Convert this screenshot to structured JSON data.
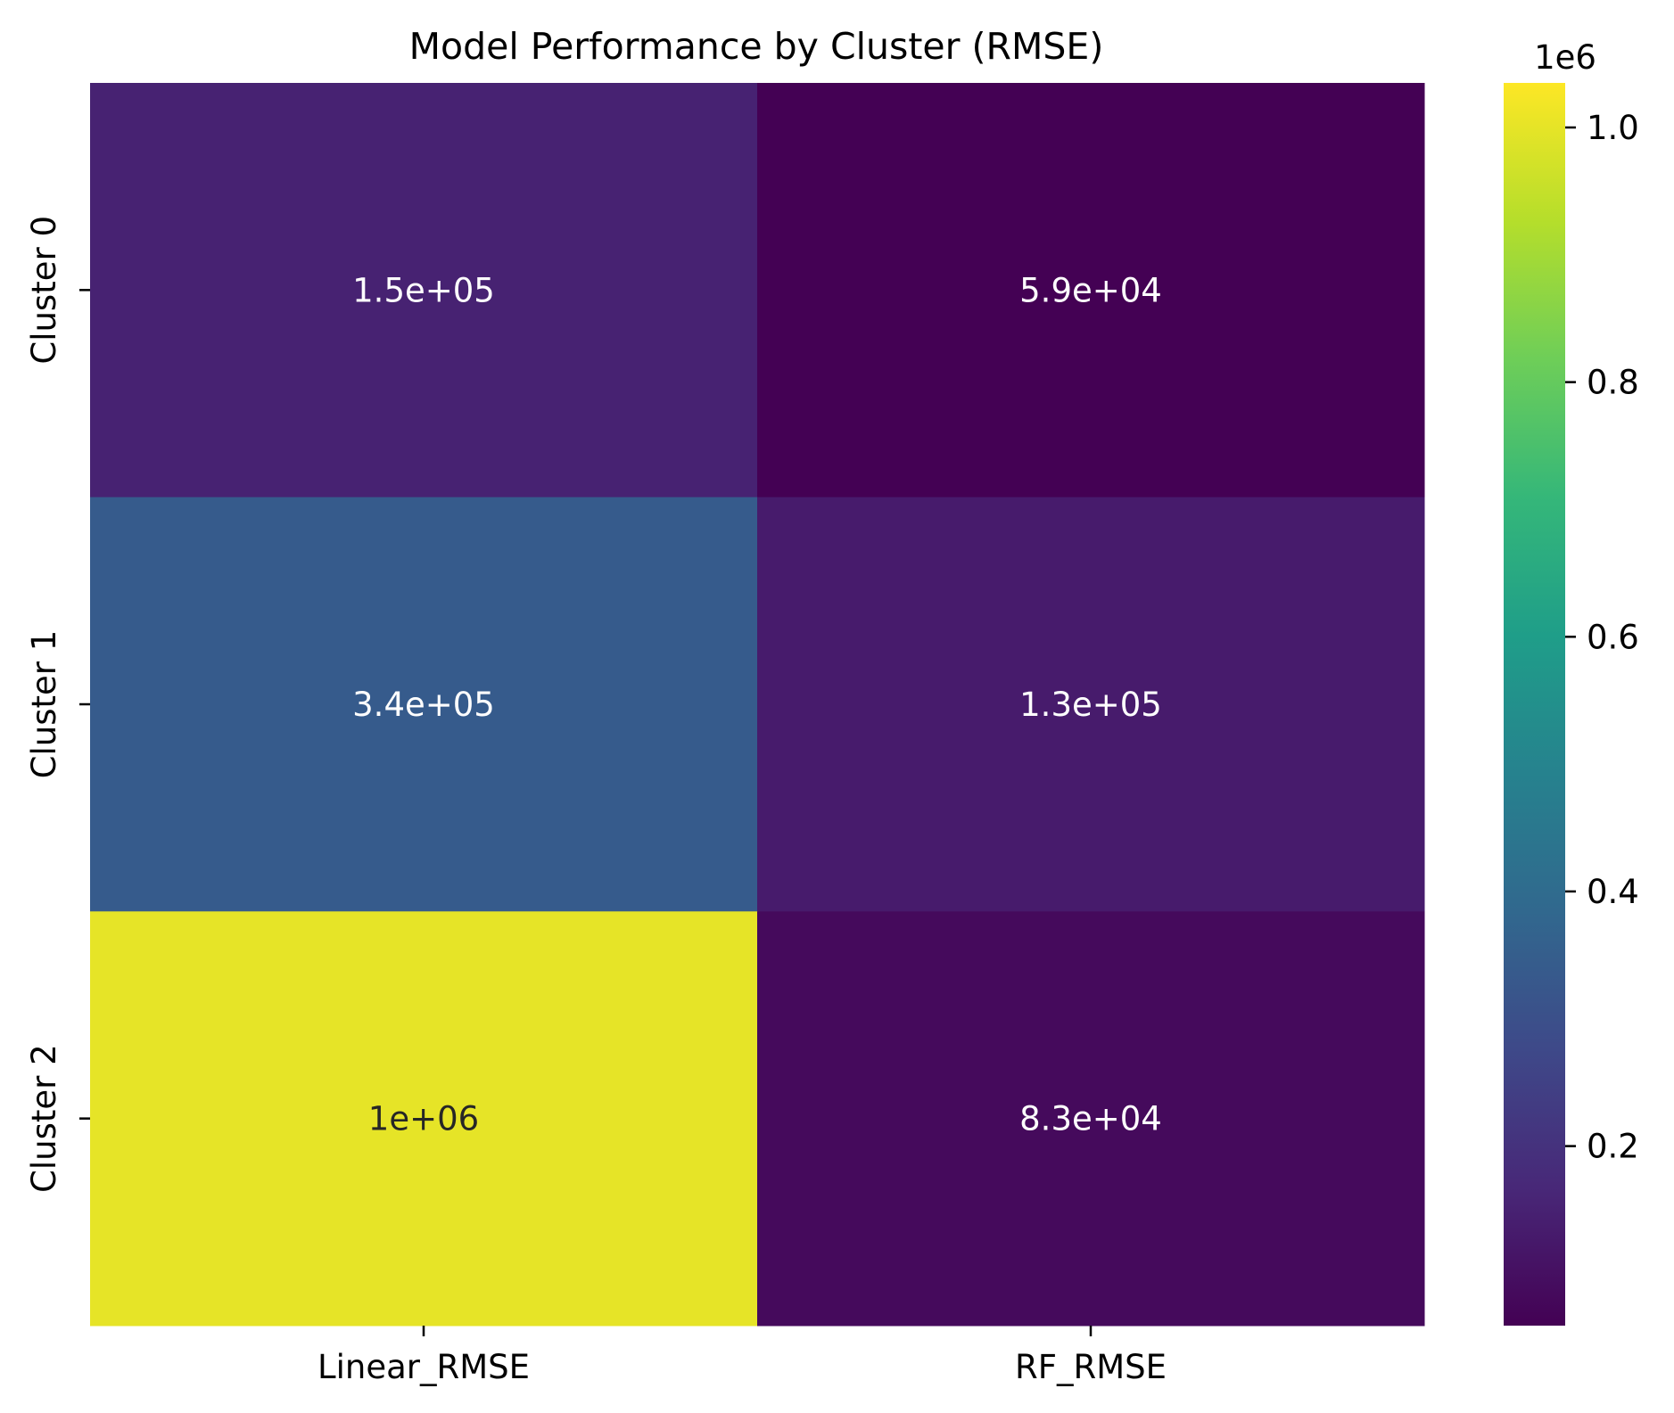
{
  "chart_data": {
    "type": "heatmap",
    "title": "Model Performance by Cluster (RMSE)",
    "xlabel": "",
    "ylabel": "",
    "x_categories": [
      "Linear_RMSE",
      "RF_RMSE"
    ],
    "y_categories": [
      "Cluster 0",
      "Cluster 1",
      "Cluster 2"
    ],
    "values": [
      [
        150000,
        59000
      ],
      [
        340000,
        130000
      ],
      [
        1000000,
        83000
      ]
    ],
    "annotations": [
      [
        "1.5e+05",
        "5.9e+04"
      ],
      [
        "3.4e+05",
        "1.3e+05"
      ],
      [
        "1e+06",
        "8.3e+04"
      ]
    ],
    "colormap": "viridis",
    "color_range": [
      59000,
      1035000
    ],
    "colorbar": {
      "ticks": [
        0.2,
        0.4,
        0.6,
        0.8,
        1.0
      ],
      "tick_labels": [
        "0.2",
        "0.4",
        "0.6",
        "0.8",
        "1.0"
      ],
      "offset_text": "1e6"
    },
    "annotation_colors": [
      [
        "#ffffff",
        "#ffffff"
      ],
      [
        "#ffffff",
        "#ffffff"
      ],
      [
        "#262626",
        "#ffffff"
      ]
    ]
  }
}
